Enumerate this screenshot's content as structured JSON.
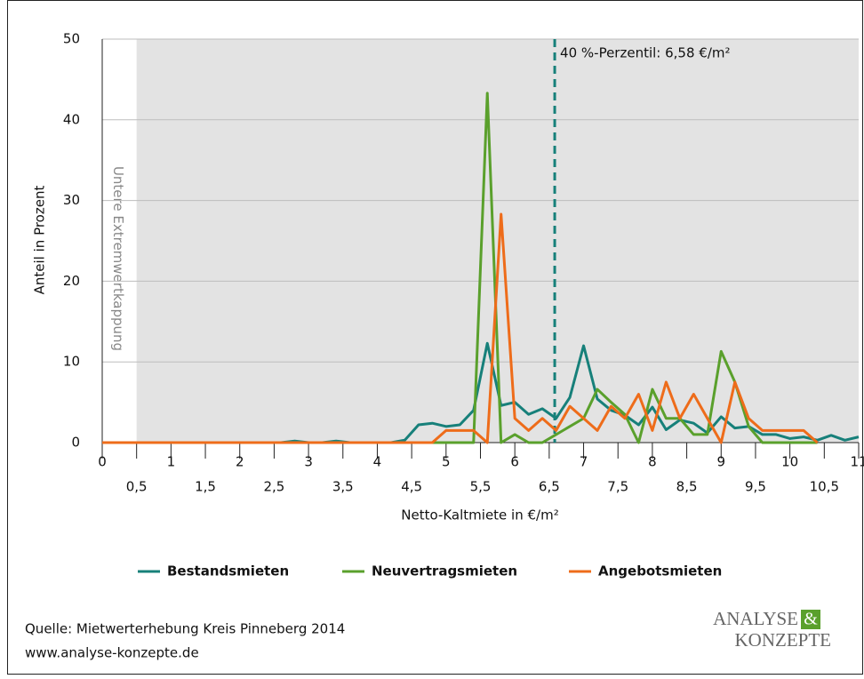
{
  "chart_data": {
    "type": "line",
    "y_label": "Anteil in Prozent",
    "x_label": "Netto-Kaltmiete in €/m²",
    "annotation": "Untere Extremwertkappung",
    "shade_from": 0.5,
    "percentile": {
      "value": 6.58,
      "label": "40 %-Perzentil: 6,58 €/m²"
    },
    "xlim": [
      0,
      11
    ],
    "ylim": [
      0,
      50
    ],
    "yticks": [
      0,
      10,
      20,
      30,
      40,
      50
    ],
    "xticks": [
      0,
      {
        "value": 0.5,
        "label": "0,5"
      },
      1,
      {
        "value": 1.5,
        "label": "1,5"
      },
      2,
      {
        "value": 2.5,
        "label": "2,5"
      },
      3,
      {
        "value": 3.5,
        "label": "3,5"
      },
      4,
      {
        "value": 4.5,
        "label": "4,5"
      },
      5,
      {
        "value": 5.5,
        "label": "5,5"
      },
      6,
      {
        "value": 6.5,
        "label": "6,5"
      },
      7,
      {
        "value": 7.5,
        "label": "7,5"
      },
      8,
      {
        "value": 8.5,
        "label": "8,5"
      },
      9,
      {
        "value": 9.5,
        "label": "9,5"
      },
      10,
      {
        "value": 10.5,
        "label": "10,5"
      },
      11
    ],
    "grid": true,
    "x": [
      0,
      0.2,
      0.4,
      0.6,
      0.8,
      1,
      1.2,
      1.4,
      1.6,
      1.8,
      2,
      2.2,
      2.4,
      2.6,
      2.8,
      3,
      3.2,
      3.4,
      3.6,
      3.8,
      4,
      4.2,
      4.4,
      4.6,
      4.8,
      5,
      5.2,
      5.4,
      5.6,
      5.8,
      6,
      6.2,
      6.4,
      6.6,
      6.8,
      7,
      7.2,
      7.4,
      7.6,
      7.8,
      8,
      8.2,
      8.4,
      8.6,
      8.8,
      9,
      9.2,
      9.4,
      9.6,
      9.8,
      10,
      10.2,
      10.4,
      10.6,
      10.8,
      11
    ],
    "series": [
      {
        "name": "Bestandsmieten",
        "color": "#17807a",
        "values": [
          0,
          0,
          0,
          0,
          0,
          0,
          0,
          0,
          0,
          0,
          0,
          0,
          0,
          0,
          0.2,
          0,
          0,
          0.2,
          0,
          0,
          0,
          0,
          0.3,
          2.2,
          2.4,
          2,
          2.2,
          4,
          12.3,
          4.6,
          5,
          3.5,
          4.2,
          3,
          5.6,
          12,
          5.4,
          4,
          3.4,
          2.2,
          4.4,
          1.6,
          2.8,
          2.4,
          1.2,
          3.2,
          1.8,
          2,
          1,
          1,
          0.5,
          0.7,
          0.3,
          0.9,
          0.3,
          0.7
        ]
      },
      {
        "name": "Neuvertragsmieten",
        "color": "#5aa02c",
        "values": [
          0,
          0,
          0,
          0,
          0,
          0,
          0,
          0,
          0,
          0,
          0,
          0,
          0,
          0,
          0,
          0,
          0,
          0,
          0,
          0,
          0,
          0,
          0,
          0,
          0,
          0,
          0,
          0,
          43.3,
          0,
          1,
          0,
          0,
          1,
          2,
          3,
          6.6,
          5,
          3.5,
          0,
          6.6,
          3,
          3,
          1,
          1,
          11.3,
          7.5,
          2,
          0,
          0,
          0,
          0,
          0,
          null,
          null,
          null
        ]
      },
      {
        "name": "Angebotsmieten",
        "color": "#ee6c1a",
        "values": [
          0,
          0,
          0,
          0,
          0,
          0,
          0,
          0,
          0,
          0,
          0,
          0,
          0,
          0,
          0,
          0,
          0,
          0,
          0,
          0,
          0,
          0,
          0,
          0,
          0,
          1.5,
          1.5,
          1.5,
          0,
          28.3,
          3,
          1.5,
          3,
          1.5,
          4.5,
          3,
          1.5,
          4.5,
          3,
          6,
          1.5,
          7.5,
          3,
          6,
          3,
          0,
          7.5,
          3,
          1.5,
          1.5,
          1.5,
          1.5,
          0,
          null,
          null,
          null
        ]
      }
    ]
  },
  "footer": {
    "source": "Quelle: Mietwerterhebung Kreis Pinneberg 2014",
    "url": "www.analyse-konzepte.de",
    "logo_top": "ANALYSE",
    "logo_amp": "&",
    "logo_bottom": "KONZEPTE"
  }
}
